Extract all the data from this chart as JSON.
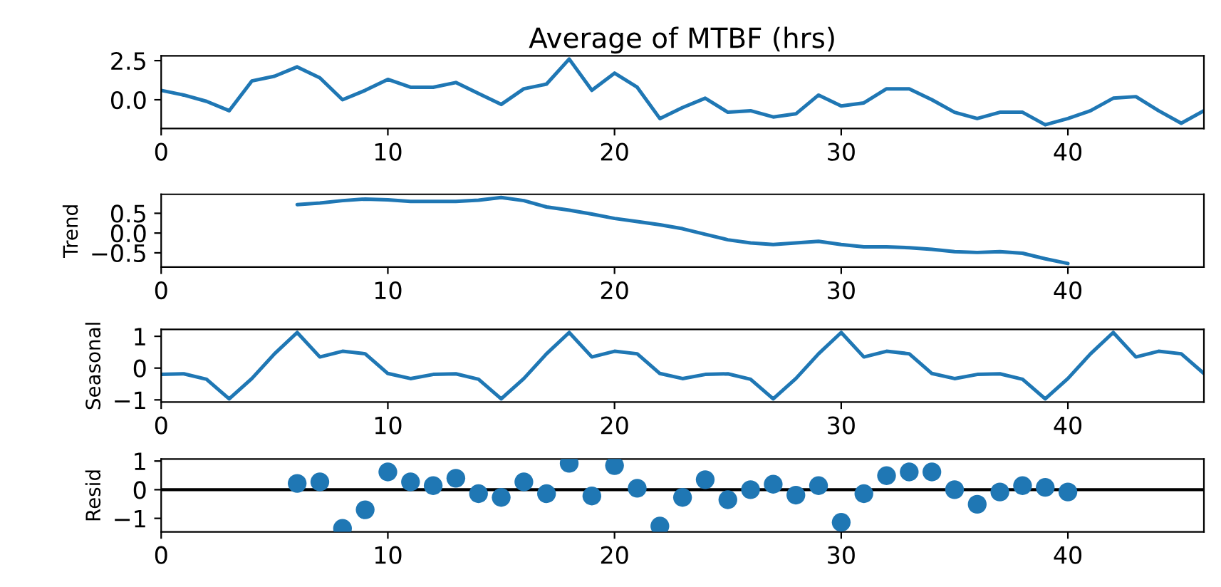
{
  "chart_data": [
    {
      "type": "line",
      "title": "Average of MTBF (hrs)",
      "x": [
        0,
        1,
        2,
        3,
        4,
        5,
        6,
        7,
        8,
        9,
        10,
        11,
        12,
        13,
        14,
        15,
        16,
        17,
        18,
        19,
        20,
        21,
        22,
        23,
        24,
        25,
        26,
        27,
        28,
        29,
        30,
        31,
        32,
        33,
        34,
        35,
        36,
        37,
        38,
        39,
        40,
        41,
        42,
        43,
        44,
        45,
        46
      ],
      "values": [
        0.6,
        0.3,
        -0.1,
        -0.7,
        1.2,
        1.5,
        2.1,
        1.4,
        0.0,
        0.6,
        1.3,
        0.8,
        0.8,
        1.1,
        0.4,
        -0.3,
        0.7,
        1.0,
        2.6,
        0.6,
        1.7,
        0.8,
        -1.2,
        -0.5,
        0.1,
        -0.8,
        -0.7,
        -1.1,
        -0.9,
        0.3,
        -0.4,
        -0.2,
        0.7,
        0.7,
        0.0,
        -0.8,
        -1.2,
        -0.8,
        -0.8,
        -1.6,
        -1.2,
        -0.7,
        0.1,
        0.2,
        -0.7,
        -1.5,
        -0.7
      ],
      "color": "#1f77b4",
      "xlim": [
        0,
        46
      ],
      "ylim": [
        -1.84,
        2.81
      ],
      "xticks": [
        0,
        10,
        20,
        30,
        40
      ],
      "yticks": [
        {
          "value": 0,
          "label": "0.0"
        },
        {
          "value": 2.5,
          "label": "2.5"
        }
      ]
    },
    {
      "type": "line",
      "ylabel": "Trend",
      "x": [
        6,
        7,
        8,
        9,
        10,
        11,
        12,
        13,
        14,
        15,
        16,
        17,
        18,
        19,
        20,
        21,
        22,
        23,
        24,
        25,
        26,
        27,
        28,
        29,
        30,
        31,
        32,
        33,
        34,
        35,
        36,
        37,
        38,
        39,
        40
      ],
      "values": [
        0.72,
        0.76,
        0.82,
        0.86,
        0.84,
        0.8,
        0.8,
        0.8,
        0.83,
        0.9,
        0.82,
        0.66,
        0.58,
        0.48,
        0.37,
        0.29,
        0.21,
        0.11,
        -0.03,
        -0.17,
        -0.25,
        -0.29,
        -0.25,
        -0.21,
        -0.29,
        -0.35,
        -0.35,
        -0.37,
        -0.41,
        -0.47,
        -0.49,
        -0.47,
        -0.51,
        -0.65,
        -0.77
      ],
      "color": "#1f77b4",
      "xlim": [
        0,
        46
      ],
      "ylim": [
        -0.86,
        0.98
      ],
      "xticks": [
        0,
        10,
        20,
        30,
        40
      ],
      "yticks": [
        {
          "value": -0.5,
          "label": "−0.5"
        },
        {
          "value": 0,
          "label": "0.0"
        },
        {
          "value": 0.5,
          "label": "0.5"
        }
      ]
    },
    {
      "type": "line",
      "ylabel": "Seasonal",
      "x": [
        0,
        1,
        2,
        3,
        4,
        5,
        6,
        7,
        8,
        9,
        10,
        11,
        12,
        13,
        14,
        15,
        16,
        17,
        18,
        19,
        20,
        21,
        22,
        23,
        24,
        25,
        26,
        27,
        28,
        29,
        30,
        31,
        32,
        33,
        34,
        35,
        36,
        37,
        38,
        39,
        40,
        41,
        42,
        43,
        44,
        45,
        46
      ],
      "values": [
        -0.2,
        -0.18,
        -0.35,
        -0.97,
        -0.33,
        0.45,
        1.12,
        0.35,
        0.53,
        0.45,
        -0.17,
        -0.33,
        -0.2,
        -0.18,
        -0.35,
        -0.97,
        -0.33,
        0.45,
        1.12,
        0.35,
        0.53,
        0.45,
        -0.17,
        -0.33,
        -0.2,
        -0.18,
        -0.35,
        -0.97,
        -0.33,
        0.45,
        1.12,
        0.35,
        0.53,
        0.45,
        -0.17,
        -0.33,
        -0.2,
        -0.18,
        -0.35,
        -0.97,
        -0.33,
        0.45,
        1.12,
        0.35,
        0.53,
        0.45,
        -0.17
      ],
      "color": "#1f77b4",
      "xlim": [
        0,
        46
      ],
      "ylim": [
        -1.07,
        1.22
      ],
      "xticks": [
        0,
        10,
        20,
        30,
        40
      ],
      "yticks": [
        {
          "value": -1,
          "label": "−1"
        },
        0,
        1
      ]
    },
    {
      "type": "scatter",
      "ylabel": "Resid",
      "marker": "circle",
      "x": [
        6,
        7,
        8,
        9,
        10,
        11,
        12,
        13,
        14,
        15,
        16,
        17,
        18,
        19,
        20,
        21,
        22,
        23,
        24,
        25,
        26,
        27,
        28,
        29,
        30,
        31,
        32,
        33,
        34,
        35,
        36,
        37,
        38,
        39,
        40
      ],
      "values": [
        0.22,
        0.27,
        -1.35,
        -0.7,
        0.62,
        0.27,
        0.14,
        0.4,
        -0.14,
        -0.27,
        0.27,
        -0.14,
        0.92,
        -0.22,
        0.84,
        0.05,
        -1.27,
        -0.27,
        0.35,
        -0.35,
        0.0,
        0.19,
        -0.19,
        0.14,
        -1.14,
        -0.14,
        0.49,
        0.62,
        0.62,
        0.0,
        -0.51,
        -0.08,
        0.14,
        0.08,
        -0.08
      ],
      "color": "#1f77b4",
      "xlim": [
        0,
        46
      ],
      "ylim": [
        -1.47,
        1.07
      ],
      "xticks": [
        0,
        10,
        20,
        30,
        40
      ],
      "yticks": [
        {
          "value": -1,
          "label": "−1"
        },
        0,
        1
      ],
      "ref_lines": [
        {
          "axis": "y",
          "value": 0,
          "color": "#000000"
        }
      ]
    }
  ]
}
